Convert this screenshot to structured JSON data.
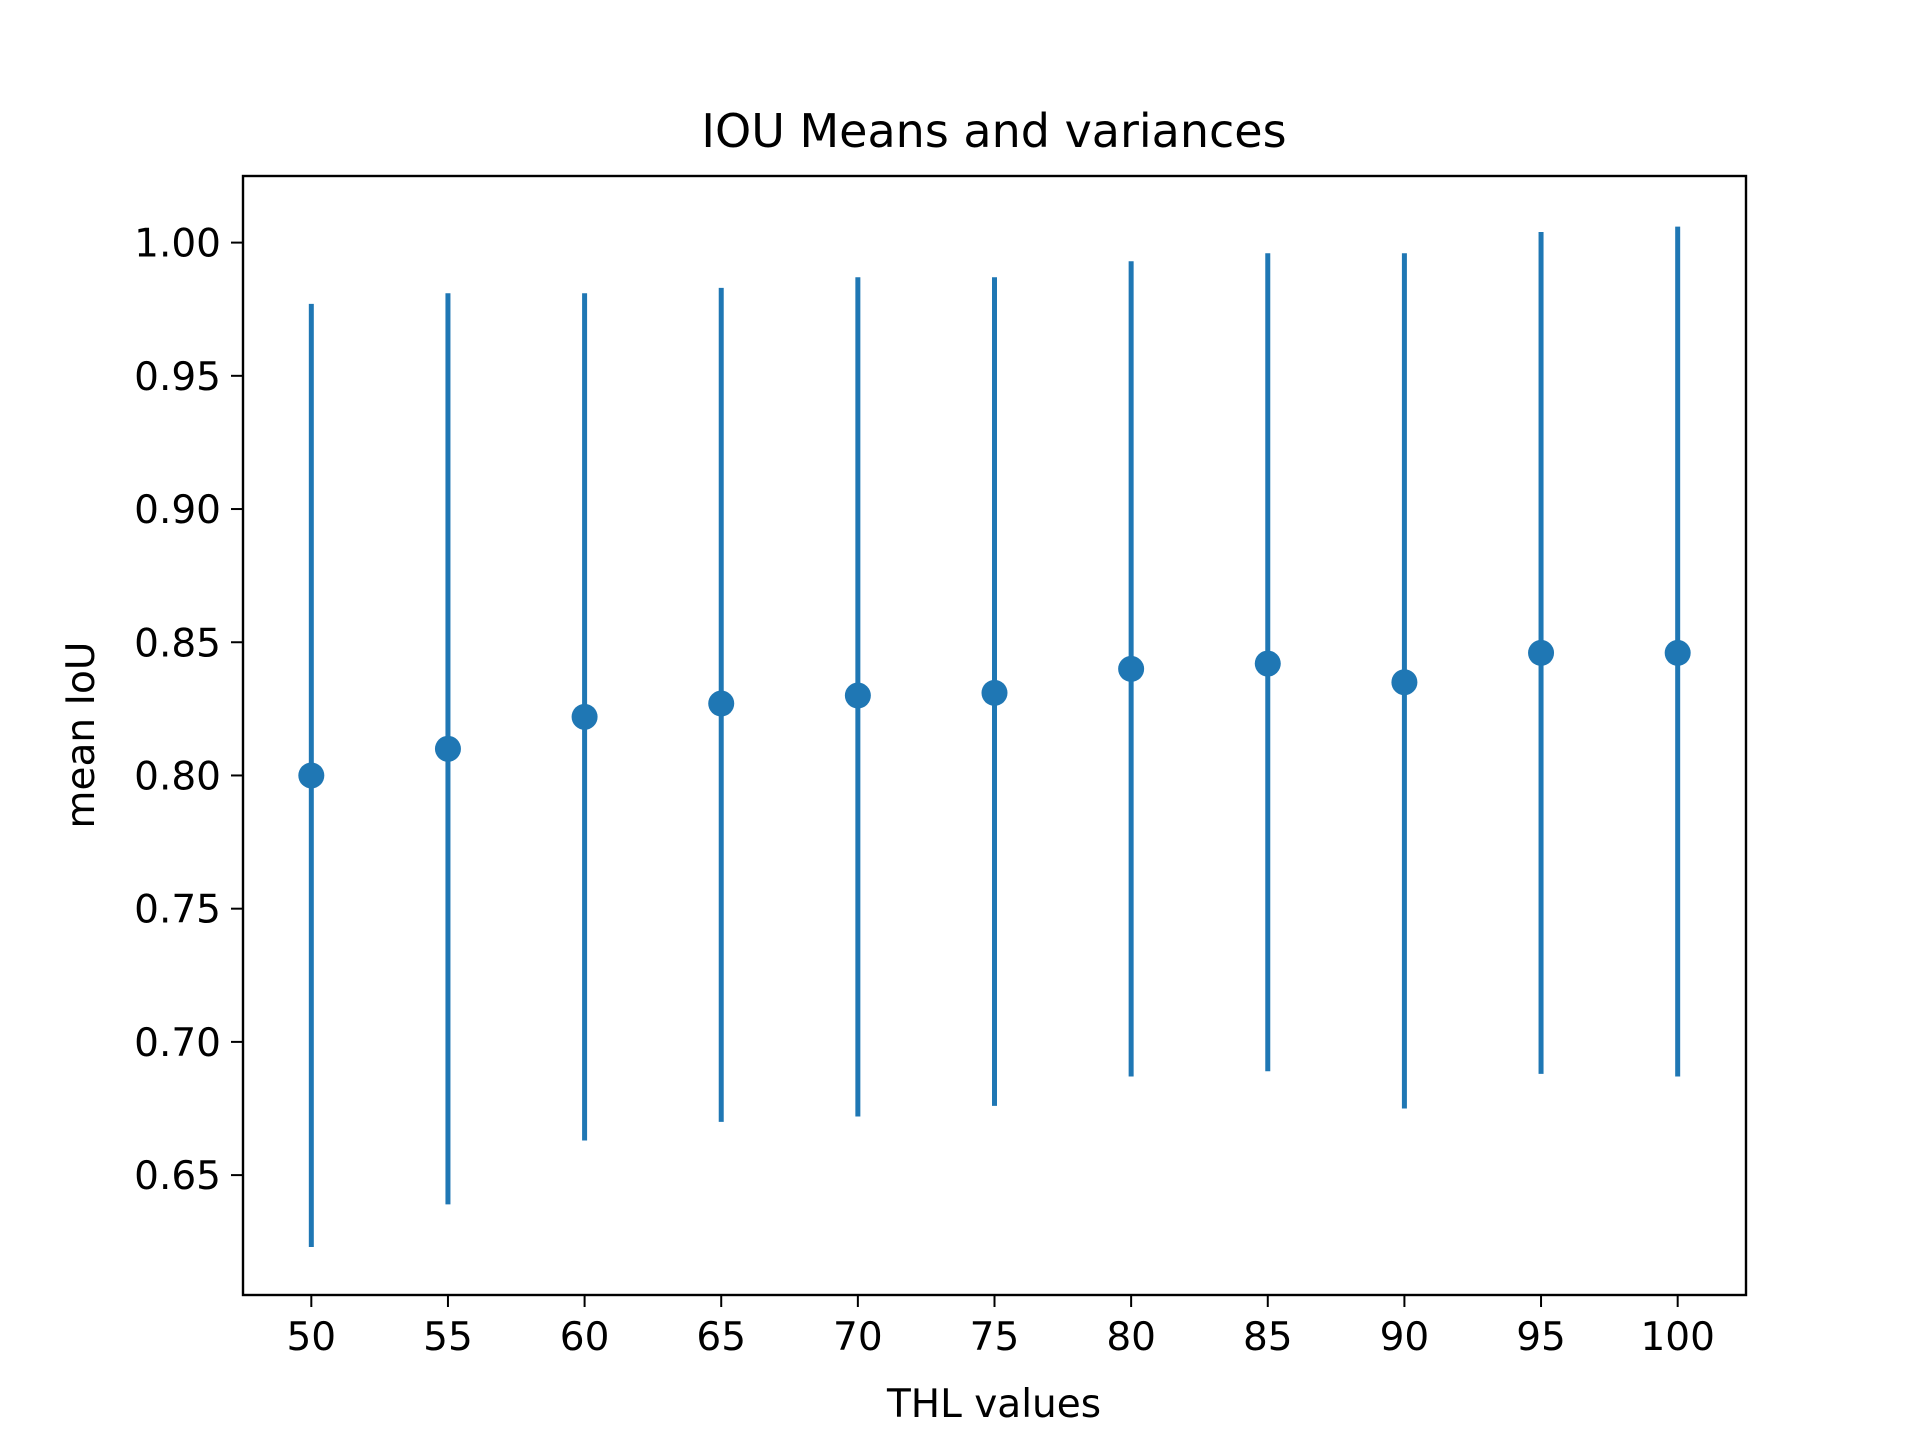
{
  "chart_data": {
    "type": "scatter",
    "title": "IOU Means and variances",
    "xlabel": "THL values",
    "ylabel": "mean IoU",
    "x": [
      50,
      55,
      60,
      65,
      70,
      75,
      80,
      85,
      90,
      95,
      100
    ],
    "x_ticks": [
      "50",
      "55",
      "60",
      "65",
      "70",
      "75",
      "80",
      "85",
      "90",
      "95",
      "100"
    ],
    "y_ticks": [
      "0.65",
      "0.70",
      "0.75",
      "0.80",
      "0.85",
      "0.90",
      "0.95",
      "1.00"
    ],
    "xlim": [
      47.5,
      102.5
    ],
    "ylim": [
      0.605,
      1.025
    ],
    "grid": false,
    "color": "#1f77b4",
    "series": [
      {
        "y": [
          0.8,
          0.81,
          0.822,
          0.827,
          0.83,
          0.831,
          0.84,
          0.842,
          0.835,
          0.846,
          0.846
        ],
        "error_lower": [
          0.623,
          0.639,
          0.663,
          0.67,
          0.672,
          0.676,
          0.687,
          0.689,
          0.675,
          0.688,
          0.687
        ],
        "error_upper": [
          0.977,
          0.981,
          0.981,
          0.983,
          0.987,
          0.987,
          0.993,
          0.996,
          0.996,
          1.004,
          1.006
        ]
      }
    ]
  }
}
